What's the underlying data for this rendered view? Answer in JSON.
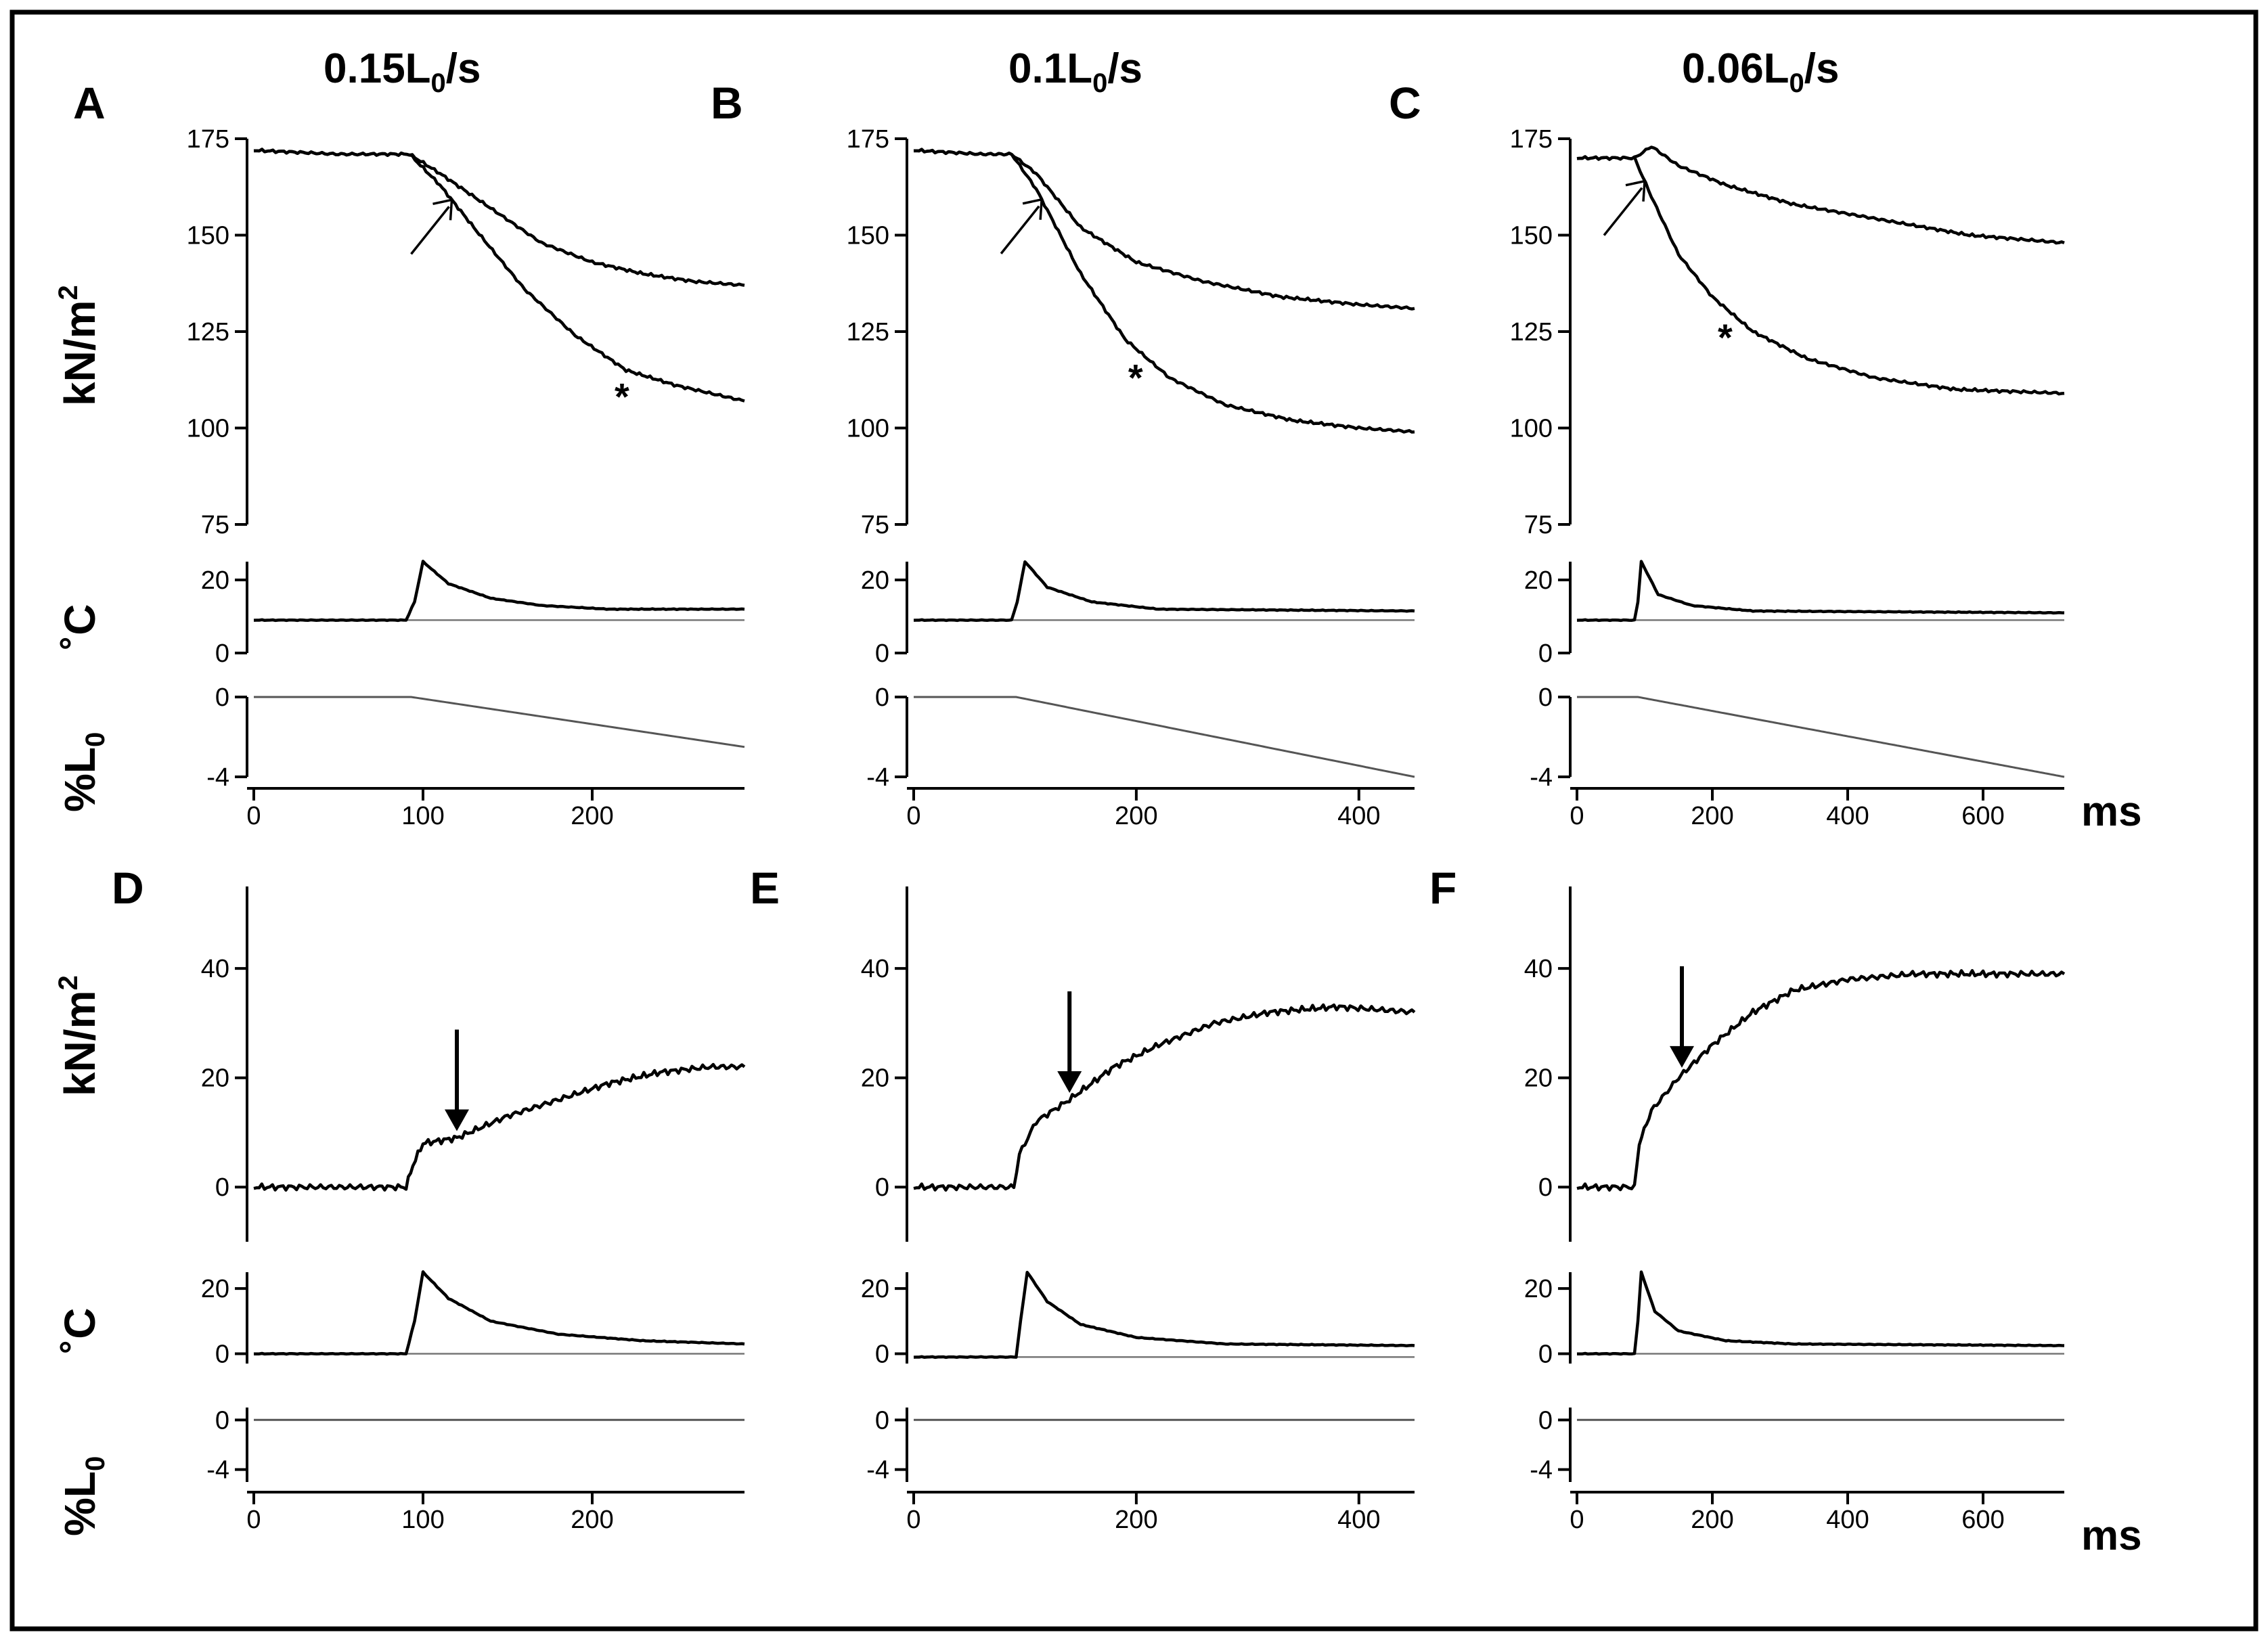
{
  "figure": {
    "column_titles": [
      {
        "main": "0.15L",
        "sub": "0",
        "tail": "/s"
      },
      {
        "main": "0.1L",
        "sub": "0",
        "tail": "/s"
      },
      {
        "main": "0.06L",
        "sub": "0",
        "tail": "/s"
      }
    ],
    "panel_letters": [
      "A",
      "B",
      "C",
      "D",
      "E",
      "F"
    ],
    "y_labels": {
      "force": {
        "main": "kN/m",
        "sup": "2"
      },
      "temp": "˚C",
      "length": {
        "main": "%L",
        "sub": "0"
      }
    },
    "x_unit": "ms",
    "star_mark": "*",
    "colors": {
      "trace": "#000000",
      "reference": "#777777",
      "frame": "#000000"
    }
  },
  "chart_data": [
    {
      "panel": "A",
      "type": "line",
      "speed": "0.15L0/s",
      "xlim": [
        0,
        290
      ],
      "xticks": [
        0,
        100,
        200
      ],
      "force": {
        "ylim": [
          75,
          175
        ],
        "yticks": [
          75,
          100,
          125,
          150,
          175
        ],
        "series": [
          {
            "name": "upper",
            "points": [
              [
                0,
                172
              ],
              [
                50,
                171
              ],
              [
                92,
                171
              ],
              [
                110,
                166
              ],
              [
                140,
                157
              ],
              [
                170,
                148
              ],
              [
                200,
                143
              ],
              [
                230,
                140
              ],
              [
                260,
                138
              ],
              [
                290,
                137
              ]
            ]
          },
          {
            "name": "lower",
            "points": [
              [
                0,
                172
              ],
              [
                50,
                171
              ],
              [
                92,
                171
              ],
              [
                110,
                163
              ],
              [
                130,
                152
              ],
              [
                160,
                136
              ],
              [
                190,
                124
              ],
              [
                220,
                115
              ],
              [
                250,
                111
              ],
              [
                290,
                107
              ]
            ]
          }
        ]
      },
      "temp": {
        "ylim": [
          0,
          25
        ],
        "yticks": [
          0,
          20
        ],
        "baseline": 9,
        "points": [
          [
            0,
            9
          ],
          [
            90,
            9
          ],
          [
            95,
            14
          ],
          [
            100,
            25
          ],
          [
            115,
            19
          ],
          [
            140,
            15
          ],
          [
            170,
            13
          ],
          [
            210,
            12
          ],
          [
            290,
            12
          ]
        ]
      },
      "length": {
        "ylim": [
          -4,
          0
        ],
        "yticks": [
          -4,
          0
        ],
        "points": [
          [
            0,
            0
          ],
          [
            93,
            0
          ],
          [
            290,
            -2.5
          ]
        ]
      },
      "arrow_x": 117,
      "star_x": 218
    },
    {
      "panel": "B",
      "type": "line",
      "speed": "0.1L0/s",
      "xlim": [
        0,
        450
      ],
      "xticks": [
        0,
        200,
        400
      ],
      "force": {
        "ylim": [
          75,
          175
        ],
        "yticks": [
          75,
          100,
          125,
          150,
          175
        ],
        "series": [
          {
            "name": "upper",
            "points": [
              [
                0,
                172
              ],
              [
                60,
                171
              ],
              [
                88,
                171
              ],
              [
                110,
                166
              ],
              [
                150,
                152
              ],
              [
                200,
                143
              ],
              [
                260,
                138
              ],
              [
                330,
                134
              ],
              [
                400,
                132
              ],
              [
                450,
                131
              ]
            ]
          },
          {
            "name": "lower",
            "points": [
              [
                0,
                172
              ],
              [
                60,
                171
              ],
              [
                88,
                171
              ],
              [
                110,
                162
              ],
              [
                150,
                140
              ],
              [
                190,
                123
              ],
              [
                230,
                113
              ],
              [
                280,
                106
              ],
              [
                340,
                102
              ],
              [
                400,
                100
              ],
              [
                450,
                99
              ]
            ]
          }
        ]
      },
      "temp": {
        "ylim": [
          0,
          25
        ],
        "yticks": [
          0,
          20
        ],
        "baseline": 9,
        "points": [
          [
            0,
            9
          ],
          [
            88,
            9
          ],
          [
            93,
            14
          ],
          [
            100,
            25
          ],
          [
            120,
            18
          ],
          [
            160,
            14
          ],
          [
            220,
            12
          ],
          [
            450,
            11.5
          ]
        ]
      },
      "length": {
        "ylim": [
          -4,
          0
        ],
        "yticks": [
          -4,
          0
        ],
        "points": [
          [
            0,
            0
          ],
          [
            92,
            0
          ],
          [
            450,
            -4
          ]
        ]
      },
      "arrow_x": 115,
      "star_x": 200
    },
    {
      "panel": "C",
      "type": "line",
      "speed": "0.06L0/s",
      "xlim": [
        0,
        720
      ],
      "xticks": [
        0,
        200,
        400,
        600
      ],
      "force": {
        "ylim": [
          75,
          175
        ],
        "yticks": [
          75,
          100,
          125,
          150,
          175
        ],
        "series": [
          {
            "name": "upper",
            "points": [
              [
                0,
                170
              ],
              [
                60,
                170
              ],
              [
                85,
                170
              ],
              [
                110,
                173
              ],
              [
                150,
                168
              ],
              [
                220,
                163
              ],
              [
                320,
                158
              ],
              [
                450,
                154
              ],
              [
                580,
                150
              ],
              [
                720,
                148
              ]
            ]
          },
          {
            "name": "lower",
            "points": [
              [
                0,
                170
              ],
              [
                60,
                170
              ],
              [
                85,
                170
              ],
              [
                110,
                160
              ],
              [
                150,
                145
              ],
              [
                200,
                134
              ],
              [
                260,
                125
              ],
              [
                340,
                118
              ],
              [
                440,
                113
              ],
              [
                560,
                110
              ],
              [
                720,
                109
              ]
            ]
          }
        ]
      },
      "temp": {
        "ylim": [
          0,
          25
        ],
        "yticks": [
          0,
          20
        ],
        "baseline": 9,
        "points": [
          [
            0,
            9
          ],
          [
            85,
            9
          ],
          [
            90,
            14
          ],
          [
            95,
            25
          ],
          [
            120,
            16
          ],
          [
            170,
            13
          ],
          [
            260,
            11.5
          ],
          [
            720,
            11
          ]
        ]
      },
      "length": {
        "ylim": [
          -4,
          0
        ],
        "yticks": [
          -4,
          0
        ],
        "points": [
          [
            0,
            0
          ],
          [
            90,
            0
          ],
          [
            720,
            -4
          ]
        ]
      },
      "arrow_x": 100,
      "star_x": 220
    },
    {
      "panel": "D",
      "type": "line",
      "speed": "0.15L0/s",
      "xlim": [
        0,
        290
      ],
      "xticks": [
        0,
        100,
        200
      ],
      "force": {
        "ylim": [
          -10,
          55
        ],
        "yticks": [
          0,
          20,
          40
        ],
        "series": [
          {
            "name": "force",
            "points": [
              [
                0,
                0
              ],
              [
                60,
                0
              ],
              [
                90,
                0
              ],
              [
                94,
                4
              ],
              [
                100,
                8
              ],
              [
                120,
                9
              ],
              [
                150,
                13
              ],
              [
                180,
                16
              ],
              [
                210,
                19
              ],
              [
                240,
                21
              ],
              [
                270,
                22
              ],
              [
                290,
                22
              ]
            ]
          }
        ]
      },
      "temp": {
        "ylim": [
          -3,
          25
        ],
        "yticks": [
          0,
          20
        ],
        "baseline": 0,
        "points": [
          [
            0,
            0
          ],
          [
            90,
            0
          ],
          [
            95,
            10
          ],
          [
            100,
            25
          ],
          [
            115,
            17
          ],
          [
            140,
            10
          ],
          [
            180,
            6
          ],
          [
            230,
            4
          ],
          [
            290,
            3
          ]
        ]
      },
      "length": {
        "ylim": [
          -5,
          1
        ],
        "yticks": [
          -4,
          0
        ],
        "points": [
          [
            0,
            0
          ],
          [
            290,
            0
          ]
        ]
      },
      "arrow_x": 120
    },
    {
      "panel": "E",
      "type": "line",
      "speed": "0.1L0/s",
      "xlim": [
        0,
        450
      ],
      "xticks": [
        0,
        200,
        400
      ],
      "force": {
        "ylim": [
          -10,
          55
        ],
        "yticks": [
          0,
          20,
          40
        ],
        "series": [
          {
            "name": "force",
            "points": [
              [
                0,
                0
              ],
              [
                60,
                0
              ],
              [
                90,
                0
              ],
              [
                95,
                6
              ],
              [
                110,
                12
              ],
              [
                140,
                16
              ],
              [
                180,
                22
              ],
              [
                220,
                26
              ],
              [
                270,
                30
              ],
              [
                320,
                32
              ],
              [
                380,
                33
              ],
              [
                450,
                32
              ]
            ]
          }
        ]
      },
      "temp": {
        "ylim": [
          -3,
          25
        ],
        "yticks": [
          0,
          20
        ],
        "baseline": -1,
        "points": [
          [
            0,
            -1
          ],
          [
            92,
            -1
          ],
          [
            96,
            10
          ],
          [
            102,
            25
          ],
          [
            120,
            16
          ],
          [
            150,
            9
          ],
          [
            200,
            5
          ],
          [
            280,
            3
          ],
          [
            450,
            2.5
          ]
        ]
      },
      "length": {
        "ylim": [
          -5,
          1
        ],
        "yticks": [
          -4,
          0
        ],
        "points": [
          [
            0,
            0
          ],
          [
            450,
            0
          ]
        ]
      },
      "arrow_x": 140
    },
    {
      "panel": "F",
      "type": "line",
      "speed": "0.06L0/s",
      "xlim": [
        0,
        720
      ],
      "xticks": [
        0,
        200,
        400,
        600
      ],
      "force": {
        "ylim": [
          -10,
          55
        ],
        "yticks": [
          0,
          20,
          40
        ],
        "series": [
          {
            "name": "force",
            "points": [
              [
                0,
                0
              ],
              [
                60,
                0
              ],
              [
                85,
                0
              ],
              [
                92,
                8
              ],
              [
                110,
                14
              ],
              [
                150,
                20
              ],
              [
                200,
                26
              ],
              [
                260,
                32
              ],
              [
                320,
                36
              ],
              [
                400,
                38
              ],
              [
                500,
                39
              ],
              [
                600,
                39
              ],
              [
                720,
                39
              ]
            ]
          }
        ]
      },
      "temp": {
        "ylim": [
          -3,
          25
        ],
        "yticks": [
          0,
          20
        ],
        "baseline": 0,
        "points": [
          [
            0,
            0
          ],
          [
            85,
            0
          ],
          [
            90,
            10
          ],
          [
            95,
            25
          ],
          [
            115,
            13
          ],
          [
            150,
            7
          ],
          [
            220,
            4
          ],
          [
            320,
            3
          ],
          [
            720,
            2.5
          ]
        ]
      },
      "length": {
        "ylim": [
          -5,
          1
        ],
        "yticks": [
          -4,
          0
        ],
        "points": [
          [
            0,
            0
          ],
          [
            720,
            0
          ]
        ]
      },
      "arrow_x": 155
    }
  ]
}
